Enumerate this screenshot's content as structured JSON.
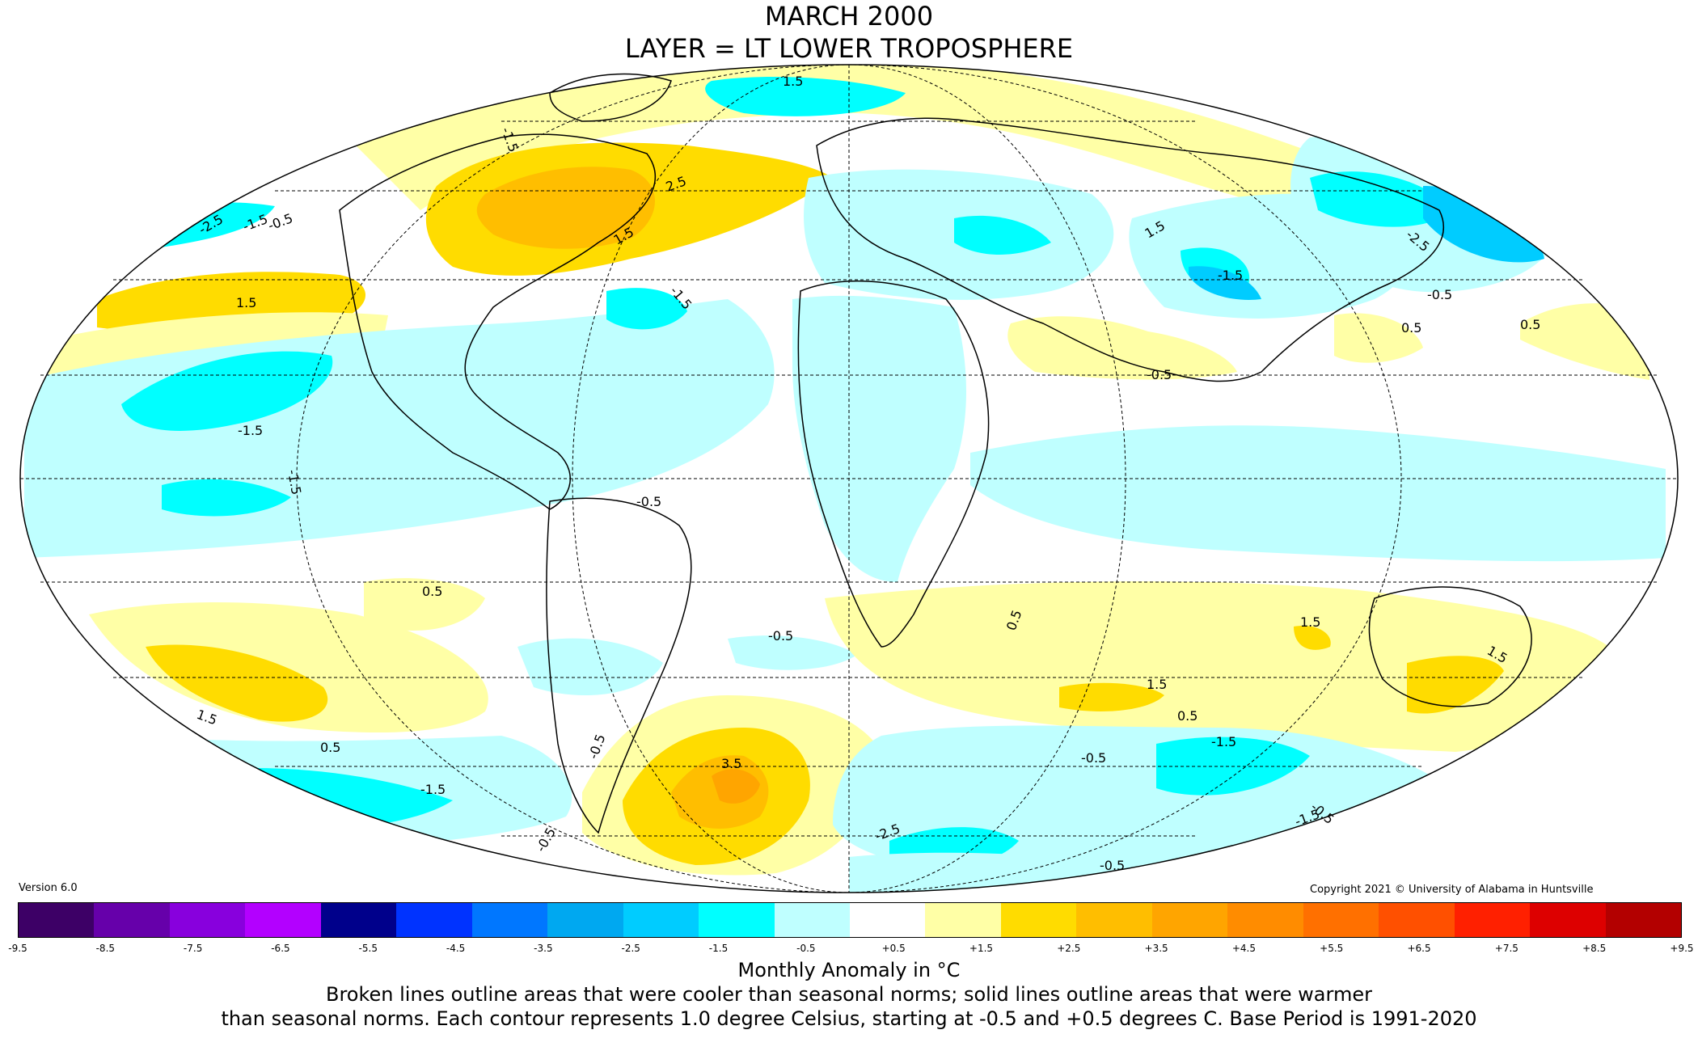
{
  "title": {
    "line1": "MARCH 2000",
    "line2": "LAYER = LT LOWER TROPOSPHERE"
  },
  "version": "Version 6.0",
  "copyright": "Copyright 2021 © University of Alabama in Huntsville",
  "colorbar": {
    "colors": [
      "#3d0066",
      "#6600aa",
      "#8800dd",
      "#b300ff",
      "#00008b",
      "#0033ff",
      "#0077ff",
      "#00a8f0",
      "#00ccff",
      "#00ffff",
      "#bfffff",
      "#ffffff",
      "#ffffa6",
      "#ffdc00",
      "#ffbe00",
      "#ffa500",
      "#ff8c00",
      "#ff7000",
      "#ff5000",
      "#ff2000",
      "#dd0000",
      "#b30000"
    ],
    "ticks": [
      "-9.5",
      "-8.5",
      "-7.5",
      "-6.5",
      "-5.5",
      "-4.5",
      "-3.5",
      "-2.5",
      "-1.5",
      "-0.5",
      "+0.5",
      "+1.5",
      "+2.5",
      "+3.5",
      "+4.5",
      "+5.5",
      "+6.5",
      "+7.5",
      "+8.5",
      "+9.5"
    ]
  },
  "units": "Monthly Anomaly in °C",
  "note_line1": "Broken lines outline areas that were cooler than seasonal norms; solid lines outline areas that were warmer",
  "note_line2": "than seasonal norms. Each contour represents 1.0 degree Celsius, starting at -0.5 and +0.5 degrees C. Base Period is 1991-2020",
  "contour_labels": [
    "1.5",
    "-1.5",
    "-2.5",
    "-1.5",
    "-0.5",
    "2.5",
    "1.5",
    "1.5",
    "-1.5",
    "-2.5",
    "-0.5",
    "0.5",
    "0.5",
    "-0.5",
    "-1.5",
    "-1.5",
    "0.5",
    "-0.5",
    "-0.5",
    "1.5",
    "0.5",
    "3.5",
    "-1.5",
    "-1.5",
    "1.5",
    "0.5",
    "-0.5",
    "-0.5",
    "1.5",
    "1.5",
    "-0.5",
    "-1.5",
    "-0.5",
    "-1.5",
    "-0.5",
    "0.5",
    "-2.5",
    "1.5"
  ]
}
